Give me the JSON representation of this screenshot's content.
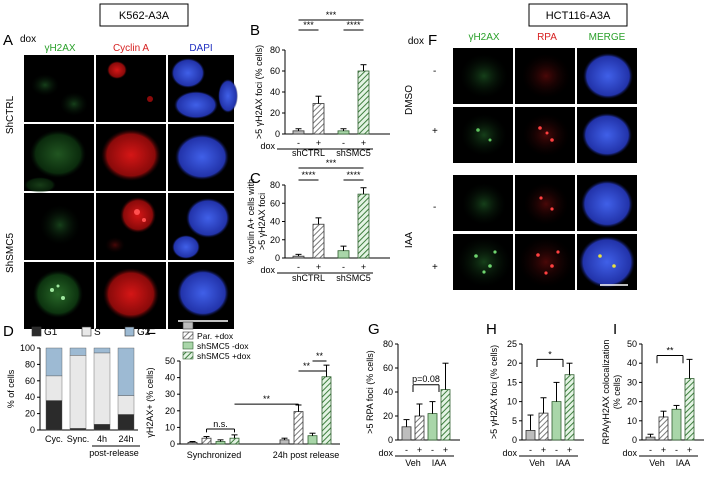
{
  "headers": {
    "left": "K562-A3A",
    "right": "HCT116-A3A"
  },
  "panel_letters": [
    "A",
    "B",
    "C",
    "D",
    "E",
    "F",
    "G",
    "H",
    "I"
  ],
  "panel_a": {
    "dox_label": "dox",
    "channels": [
      "γH2AX",
      "Cyclin A",
      "DAPI"
    ],
    "row_groups": [
      "ShCTRL",
      "ShSMC5"
    ],
    "row_signs": [
      "-",
      "+",
      "-",
      "+"
    ]
  },
  "panel_f": {
    "dox_label": "dox",
    "channels": [
      "γH2AX",
      "RPA",
      "MERGE"
    ],
    "row_groups": [
      "DMSO",
      "IAA"
    ],
    "row_signs": [
      "-",
      "+",
      "-",
      "+"
    ]
  },
  "common": {
    "dox": "dox",
    "minus": "-",
    "plus": "+"
  },
  "colors": {
    "green": "#2aa02a",
    "red": "#d62020",
    "blue": "#2030c0",
    "grey": "#bdbdbd",
    "dark": "#2b2b2b",
    "light": "#e8e8e8",
    "hatch_green": "#4c8f4c",
    "solid_green": "#a9d6a9"
  },
  "chart_data": [
    {
      "panel": "B",
      "type": "bar",
      "ylabel": ">5 γH2AX foci (% cells)",
      "ylim": [
        0,
        80
      ],
      "yticks": [
        0,
        20,
        40,
        60,
        80
      ],
      "groups": [
        "shCTRL",
        "shSMC5"
      ],
      "dox": [
        "-",
        "+",
        "-",
        "+"
      ],
      "values": [
        3,
        29,
        3,
        60
      ],
      "errors": [
        2,
        7,
        2,
        6
      ],
      "significance": [
        {
          "from": 0,
          "to": 1,
          "label": "***"
        },
        {
          "from": 2,
          "to": 3,
          "label": "****"
        },
        {
          "from": 0,
          "to": 3,
          "label": "***"
        }
      ]
    },
    {
      "panel": "C",
      "type": "bar",
      "ylabel": "% cyclin A+ cells with >5 γH2AX foci",
      "ylim": [
        0,
        80
      ],
      "yticks": [
        0,
        20,
        40,
        60,
        80
      ],
      "groups": [
        "shCTRL",
        "shSMC5"
      ],
      "dox": [
        "-",
        "+",
        "-",
        "+"
      ],
      "values": [
        2,
        37,
        8,
        70
      ],
      "errors": [
        2,
        7,
        5,
        7
      ],
      "significance": [
        {
          "from": 0,
          "to": 1,
          "label": "****"
        },
        {
          "from": 2,
          "to": 3,
          "label": "****"
        },
        {
          "from": 0,
          "to": 3,
          "label": "***"
        }
      ]
    },
    {
      "panel": "D",
      "type": "bar",
      "stacked": true,
      "ylabel": "% of cells",
      "ylim": [
        0,
        100
      ],
      "yticks": [
        0,
        20,
        40,
        60,
        80,
        100
      ],
      "categories": [
        "Cyc.",
        "Sync.",
        "4h",
        "24h"
      ],
      "xnote": "post-release",
      "series": [
        {
          "name": "G1",
          "values": [
            36,
            2,
            7,
            19
          ]
        },
        {
          "name": "S",
          "values": [
            30,
            89,
            87,
            23
          ]
        },
        {
          "name": "G2",
          "values": [
            34,
            9,
            6,
            58
          ]
        }
      ]
    },
    {
      "panel": "E",
      "type": "bar",
      "ylabel": "γH2AX+ (% cells)",
      "ylim": [
        0,
        50
      ],
      "yticks": [
        0,
        10,
        20,
        30,
        40,
        50
      ],
      "groups": [
        "Synchronized",
        "24h post release"
      ],
      "series": [
        {
          "name": "Par. -dox",
          "values": [
            1,
            2.5
          ],
          "errors": [
            0.5,
            1
          ]
        },
        {
          "name": "Par. +dox",
          "values": [
            3.5,
            19.5
          ],
          "errors": [
            1,
            4
          ]
        },
        {
          "name": "shSMC5 -dox",
          "values": [
            1.5,
            5
          ],
          "errors": [
            1,
            1.5
          ]
        },
        {
          "name": "shSMC5 +dox",
          "values": [
            3.5,
            40.5
          ],
          "errors": [
            2,
            7
          ]
        }
      ],
      "annotations": [
        "n.s.",
        "**",
        "**",
        "**"
      ]
    },
    {
      "panel": "G",
      "type": "bar",
      "ylabel": ">5 RPA foci (% cells)",
      "ylim": [
        0,
        80
      ],
      "yticks": [
        0,
        20,
        40,
        60,
        80
      ],
      "groups": [
        "Veh",
        "IAA"
      ],
      "dox": [
        "-",
        "+",
        "-",
        "+"
      ],
      "values": [
        11,
        20,
        22,
        42
      ],
      "errors": [
        6,
        10,
        10,
        22
      ],
      "annotation": "p=0.08"
    },
    {
      "panel": "H",
      "type": "bar",
      "ylabel": ">5 γH2AX foci (% cells)",
      "ylim": [
        0,
        25
      ],
      "yticks": [
        0,
        5,
        10,
        15,
        20,
        25
      ],
      "groups": [
        "Veh",
        "IAA"
      ],
      "dox": [
        "-",
        "+",
        "-",
        "+"
      ],
      "values": [
        2.5,
        7,
        10,
        17
      ],
      "errors": [
        4,
        4,
        5,
        3
      ],
      "annotation": "*"
    },
    {
      "panel": "I",
      "type": "bar",
      "ylabel": "RPA/γH2AX colocalization (% cells)",
      "ylim": [
        0,
        50
      ],
      "yticks": [
        0,
        10,
        20,
        30,
        40,
        50
      ],
      "groups": [
        "Veh",
        "IAA"
      ],
      "dox": [
        "-",
        "+",
        "-",
        "+"
      ],
      "values": [
        1.5,
        12,
        16,
        32
      ],
      "errors": [
        1.5,
        3,
        2,
        10
      ],
      "annotation": "**"
    }
  ]
}
